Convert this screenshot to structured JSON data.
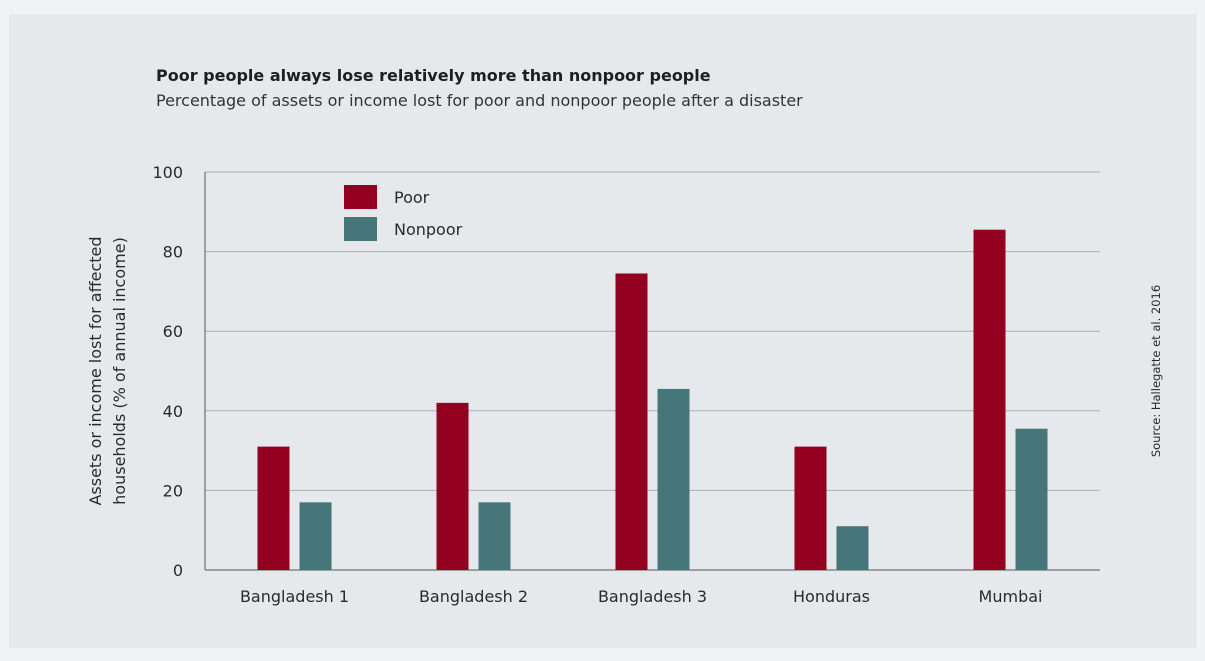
{
  "chart_data": {
    "type": "bar",
    "title": "Poor people always lose relatively more than nonpoor people",
    "subtitle": "Percentage of assets or income lost for poor and nonpoor people after a disaster",
    "ylabel_line1": "Assets or income lost for affected",
    "ylabel_line2": "households (% of annual income)",
    "xlabel": "",
    "ylim": [
      0,
      100
    ],
    "yticks": [
      0,
      20,
      40,
      60,
      80,
      100
    ],
    "grid": true,
    "legend_position": "top-left",
    "categories": [
      "Bangladesh 1",
      "Bangladesh 2",
      "Bangladesh 3",
      "Honduras",
      "Mumbai"
    ],
    "series": [
      {
        "name": "Poor",
        "color": "#94001f",
        "values": [
          31,
          42,
          74.5,
          31,
          85.5
        ]
      },
      {
        "name": "Nonpoor",
        "color": "#46767a",
        "values": [
          17,
          17,
          45.5,
          11,
          35.5
        ]
      }
    ],
    "source": "Source: Hallegatte et al. 2016"
  }
}
